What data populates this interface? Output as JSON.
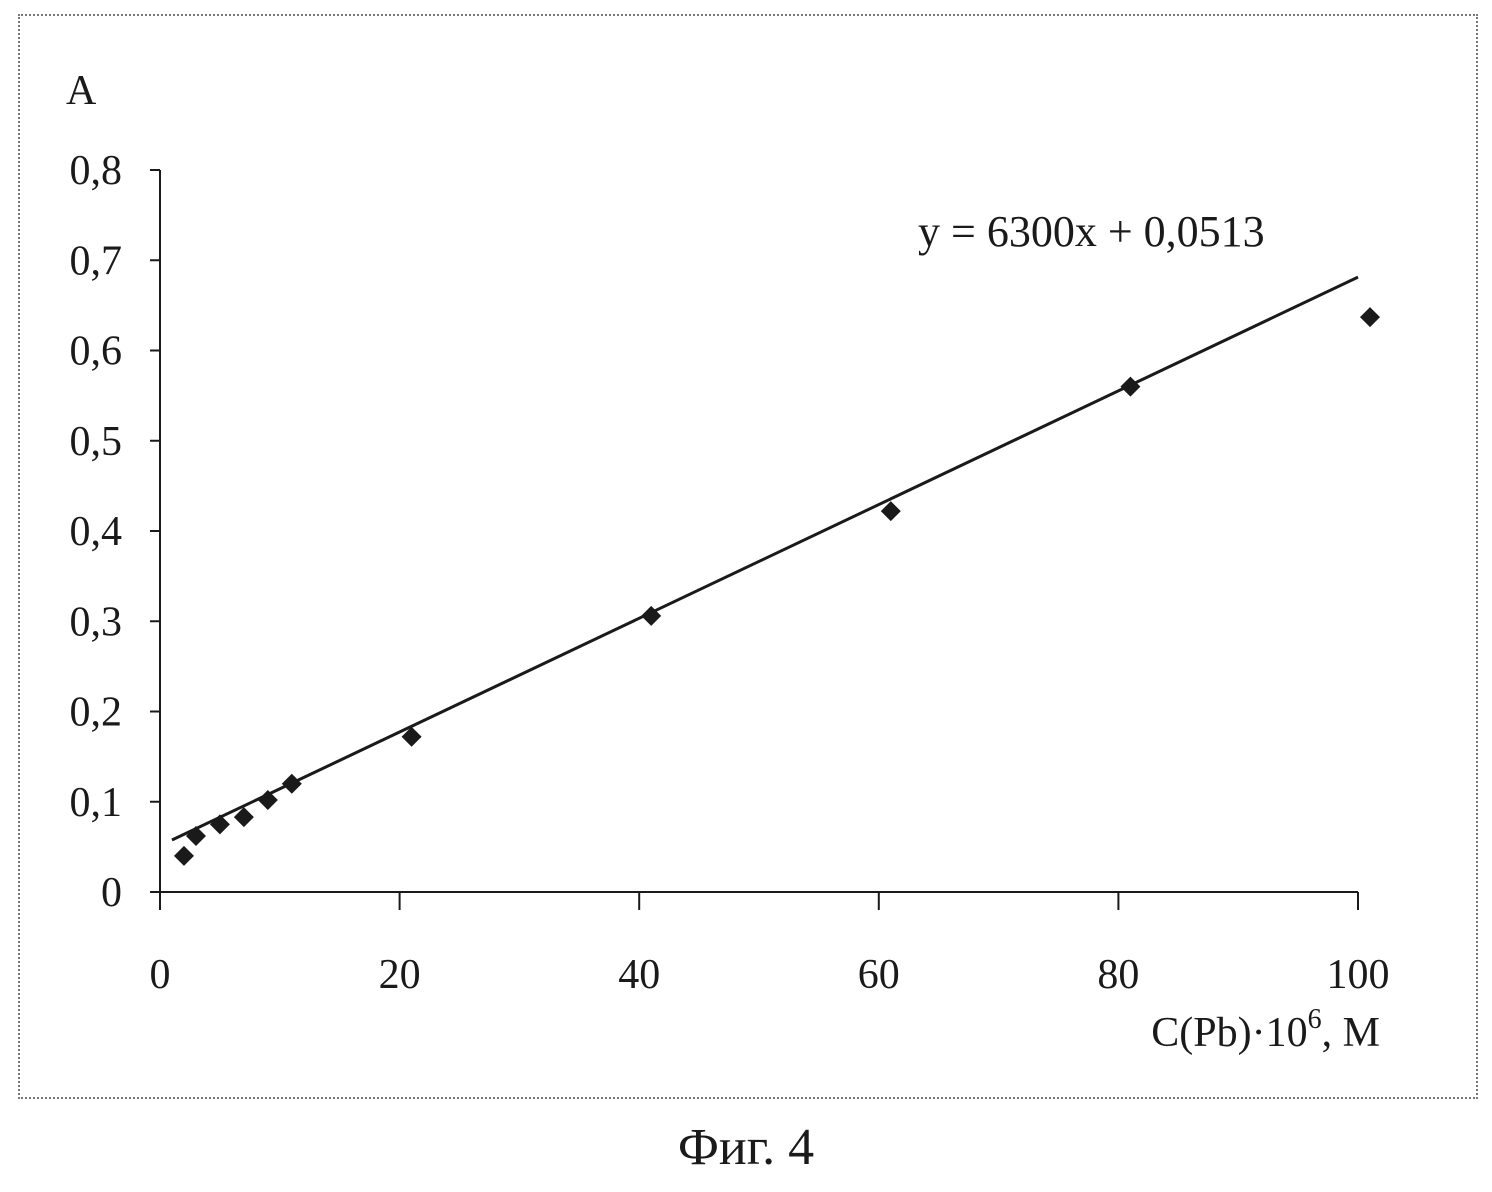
{
  "caption": "Фиг. 4",
  "chart_data": {
    "type": "scatter",
    "ylabel": "A",
    "xlabel_parts": {
      "before": "C(Pb)·10",
      "sup": "6",
      "after": ", M"
    },
    "xlim": [
      0,
      100
    ],
    "ylim": [
      0,
      0.8
    ],
    "x_ticks": [
      0,
      20,
      40,
      60,
      80,
      100
    ],
    "x_tick_labels": [
      "0",
      "20",
      "40",
      "60",
      "80",
      "100"
    ],
    "y_ticks": [
      0,
      0.1,
      0.2,
      0.3,
      0.4,
      0.5,
      0.6,
      0.7,
      0.8
    ],
    "y_tick_labels": [
      "0",
      "0,1",
      "0,2",
      "0,3",
      "0,4",
      "0,5",
      "0,6",
      "0,7",
      "0,8"
    ],
    "points": [
      {
        "x": 1,
        "y": 0.04
      },
      {
        "x": 2,
        "y": 0.062
      },
      {
        "x": 4,
        "y": 0.075
      },
      {
        "x": 6,
        "y": 0.083
      },
      {
        "x": 8,
        "y": 0.102
      },
      {
        "x": 10,
        "y": 0.12
      },
      {
        "x": 20,
        "y": 0.172
      },
      {
        "x": 40,
        "y": 0.306
      },
      {
        "x": 60,
        "y": 0.422
      },
      {
        "x": 80,
        "y": 0.56
      },
      {
        "x": 100,
        "y": 0.637
      }
    ],
    "trendline": {
      "slope": 0.0063,
      "intercept": 0.0513,
      "x_range": [
        1,
        100
      ]
    },
    "equation_label": "y = 6300x + 0,0513",
    "marker": "diamond",
    "grid": false,
    "color": "#1a1a1a"
  }
}
